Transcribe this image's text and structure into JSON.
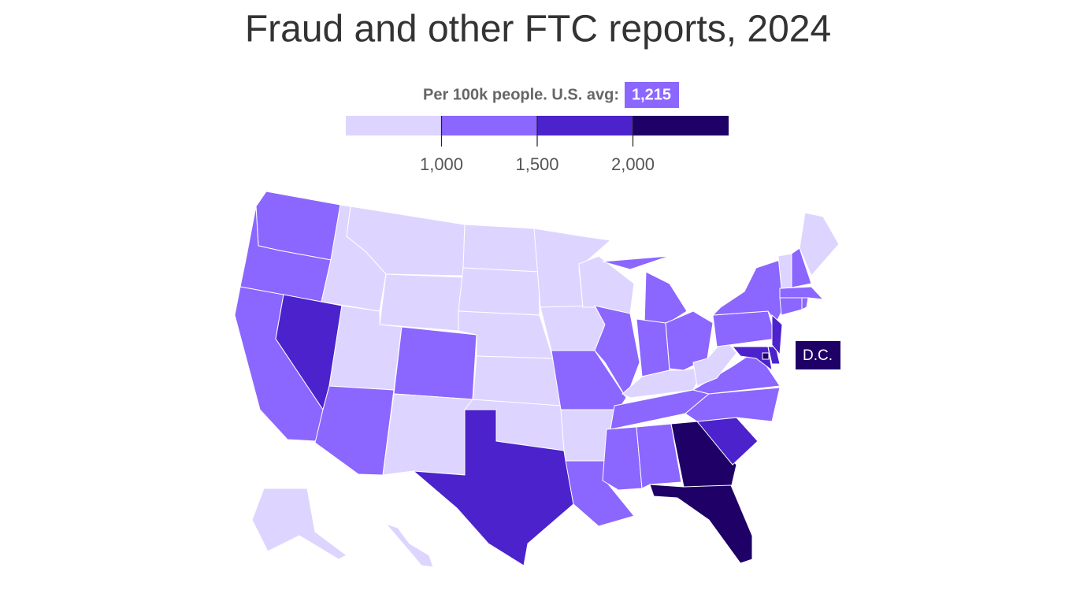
{
  "chart_data": {
    "type": "choropleth",
    "title": "Fraud and other FTC reports, 2024",
    "subtitle": "Per 100k people. U.S. avg:",
    "average": {
      "value": 1215,
      "label": "1,215"
    },
    "legend": {
      "lim": [
        500,
        2500
      ],
      "ticks": [
        {
          "value": 1000,
          "label": "1,000"
        },
        {
          "value": 1500,
          "label": "1,500"
        },
        {
          "value": 2000,
          "label": "2,000"
        }
      ],
      "colors": [
        "#ddd5ff",
        "#8b66ff",
        "#4c22cc",
        "#1e0066"
      ]
    },
    "values": [
      1250,
      1250,
      1250,
      1700,
      850,
      850,
      850,
      850,
      1250,
      1250,
      850,
      850,
      850,
      850,
      850,
      850,
      1700,
      850,
      850,
      1250,
      850,
      1250,
      850,
      1250,
      1250,
      1250,
      1250,
      850,
      1250,
      1250,
      1250,
      2200,
      2200,
      1700,
      1250,
      1250,
      850,
      1250,
      1250,
      1700,
      1700,
      1700,
      1250,
      1250,
      1250,
      850,
      1250,
      850,
      850,
      850,
      2200
    ],
    "annotation": "D.C."
  }
}
